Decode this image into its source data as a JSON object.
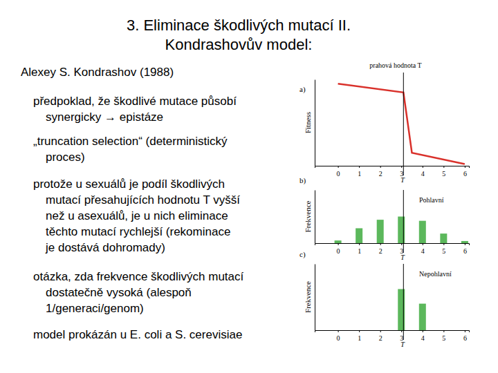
{
  "slide": {
    "title": [
      "3. Eliminace škodlivých mutací II.",
      "Kondrashovův model:"
    ],
    "author": "Alexey S. Kondrashov (1988)",
    "bullets": [
      {
        "lines": [
          "předpoklad, že škodlivé mutace působí",
          "synergicky → epistáze"
        ]
      },
      {
        "lines": [
          "„truncation selection“ (deterministický",
          "proces)"
        ]
      },
      {
        "lines": [
          "protože u sexuálů je podíl škodlivých",
          "mutací přesahujících hodnotu T vyšší",
          "než u asexuálů, je u nich eliminace",
          "těchto mutací rychlejší (rekominace",
          "je dostává dohromady)"
        ]
      },
      {
        "lines": [
          "otázka, zda frekvence škodlivých mutací",
          "dostatečně vysoká (alespoň",
          "1/generaci/genom)"
        ]
      },
      {
        "lines": [
          "model prokázán u E. coli a S. cerevisiae"
        ]
      }
    ]
  },
  "chart_data": [
    {
      "type": "line",
      "panel": "a)",
      "title": "prahová hodnota T",
      "y_label": "Fitness",
      "x": [
        0,
        3.1,
        3.5,
        6
      ],
      "values": [
        0.95,
        0.85,
        0.15,
        0.02
      ],
      "color": "#d9312b",
      "xlim": [
        -1.1,
        6.2
      ],
      "ylim": [
        0,
        1
      ],
      "xticks": [
        0,
        1,
        2,
        3,
        4,
        5,
        6
      ],
      "tick_labels": "x",
      "annotations": [
        {
          "x": 3.1,
          "label": "T"
        }
      ]
    },
    {
      "type": "bar",
      "panel": "b)",
      "title": "Pohlavní",
      "y_label": "Frekvence",
      "x": [
        0,
        1,
        2,
        3,
        4,
        5,
        6
      ],
      "values": [
        5,
        28,
        44,
        50,
        42,
        18,
        4
      ],
      "color": "#5cb85c",
      "xlim": [
        -1.1,
        6.2
      ],
      "ylim": [
        0,
        100
      ],
      "xticks": [
        0,
        1,
        2,
        3,
        4,
        5,
        6
      ],
      "tick_labels": "x",
      "annotations": [
        {
          "x": 3.1,
          "label": "T"
        }
      ]
    },
    {
      "type": "bar",
      "panel": "c)",
      "title": "Nepohlavní",
      "y_label": "Frekvence",
      "x": [
        0,
        1,
        2,
        3,
        4,
        5,
        6
      ],
      "values": [
        0,
        0,
        0,
        62,
        40,
        0,
        0
      ],
      "color": "#5cb85c",
      "xlim": [
        -1.1,
        6.2
      ],
      "ylim": [
        0,
        100
      ],
      "xticks": [
        0,
        1,
        2,
        3,
        4,
        5,
        6
      ],
      "tick_labels": "x",
      "annotations": [
        {
          "x": 3.1,
          "label": "T"
        }
      ]
    }
  ]
}
